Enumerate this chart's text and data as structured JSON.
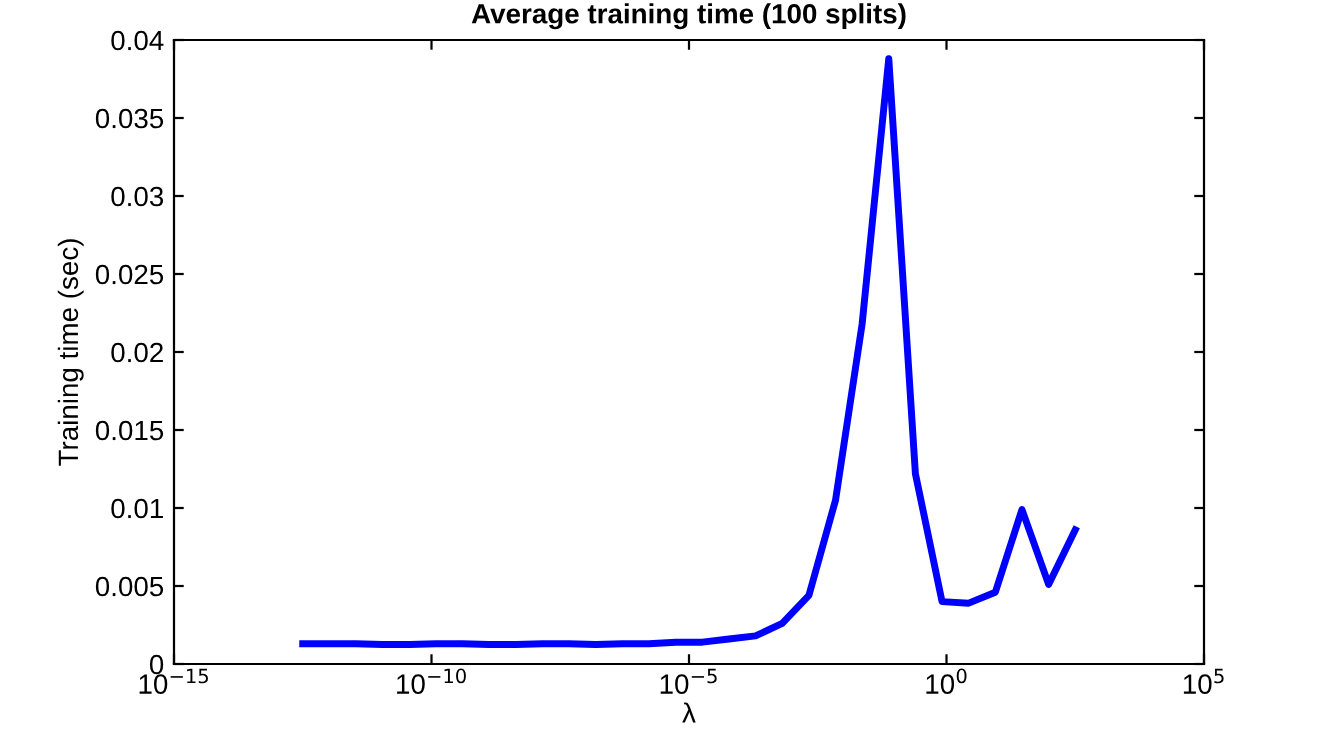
{
  "chart_data": {
    "type": "line",
    "title": "Average training time (100 splits)",
    "xlabel": "λ",
    "ylabel": "Training time (sec)",
    "log": "x",
    "x": [
      3.16e-13,
      1.04e-12,
      3.42e-12,
      1.13e-11,
      3.71e-11,
      1.22e-10,
      4.01e-10,
      1.32e-09,
      4.35e-09,
      1.43e-08,
      4.7e-08,
      1.55e-07,
      5.09e-07,
      1.67e-06,
      5.51e-06,
      1.82e-05,
      5.97e-05,
      0.000196,
      0.000646,
      0.00213,
      0.007,
      0.023,
      0.0757,
      0.249,
      0.82,
      2.7,
      8.87,
      29.2,
      96.2,
      316
    ],
    "series": [
      {
        "color": "#0000ff",
        "values": [
          0.0013,
          0.0013,
          0.0013,
          0.00125,
          0.00125,
          0.0013,
          0.0013,
          0.00125,
          0.00125,
          0.0013,
          0.0013,
          0.00125,
          0.0013,
          0.0013,
          0.0014,
          0.0014,
          0.0016,
          0.0018,
          0.0026,
          0.0044,
          0.0105,
          0.0218,
          0.0388,
          0.0122,
          0.004,
          0.0039,
          0.0046,
          0.0099,
          0.0051,
          0.0086
        ]
      }
    ],
    "xlim": [
      1e-15,
      100000
    ],
    "ylim": [
      0,
      0.04
    ],
    "xticks": [
      {
        "value": 1e-15,
        "label": "10$^{−15}$"
      },
      {
        "value": 1e-10,
        "label": "10$^{−10}$"
      },
      {
        "value": 1e-05,
        "label": "10$^{−5}$"
      },
      {
        "value": 1,
        "label": "10$^{0}$"
      },
      {
        "value": 100000,
        "label": "10$^{5}$"
      }
    ],
    "yticks": [
      0,
      0.005,
      0.01,
      0.015,
      0.02,
      0.025,
      0.03,
      0.035,
      0.04
    ],
    "grid": false,
    "marker": "none",
    "line_style": "solid"
  }
}
